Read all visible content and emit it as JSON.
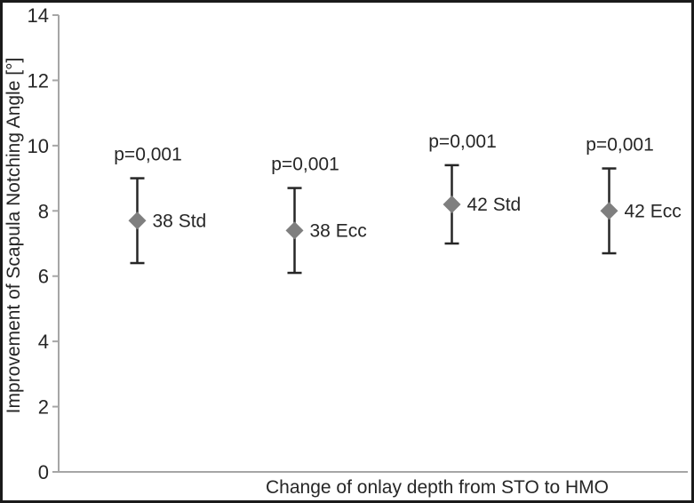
{
  "chart_data": {
    "type": "scatter",
    "title": "",
    "xlabel": "Change of onlay depth from STO to HMO",
    "ylabel": "Improvement of Scapula Notching Angle [°]",
    "ylim": [
      0,
      14
    ],
    "yticks": [
      0,
      2,
      4,
      6,
      8,
      10,
      12,
      14
    ],
    "grid": false,
    "legend_position": "none",
    "marker": "diamond",
    "points": [
      {
        "label": "38 Std",
        "mean": 7.7,
        "lower": 6.4,
        "upper": 9.0,
        "p_label": "p=0,001"
      },
      {
        "label": "38 Ecc",
        "mean": 7.4,
        "lower": 6.1,
        "upper": 8.7,
        "p_label": "p=0,001"
      },
      {
        "label": "42 Std",
        "mean": 8.2,
        "lower": 7.0,
        "upper": 9.4,
        "p_label": "p=0,001"
      },
      {
        "label": "42 Ecc",
        "mean": 8.0,
        "lower": 6.7,
        "upper": 9.3,
        "p_label": "p=0,001"
      }
    ],
    "colors": {
      "marker": "#7f7f7f",
      "error_bar": "#262626",
      "axis_line": "#a6a6a6",
      "text": "#262626",
      "frame": "#1a1a1a",
      "background": "#ffffff"
    }
  }
}
